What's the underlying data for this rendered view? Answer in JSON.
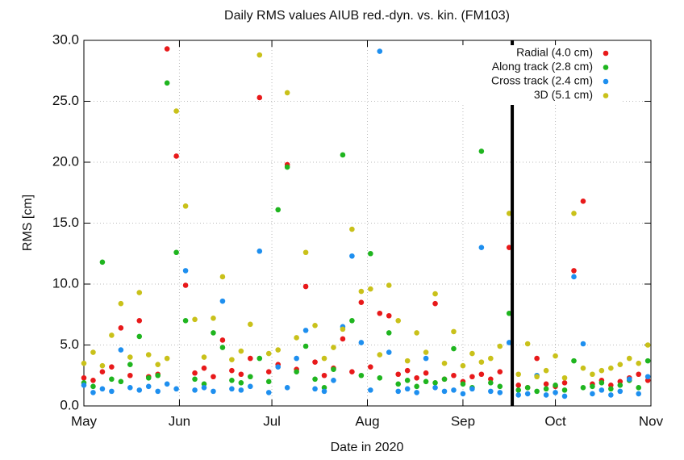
{
  "chart_data": {
    "type": "scatter",
    "title": "Daily RMS values AIUB red.-dyn. vs. kin. (FM103)",
    "x_label": "Date in 2020",
    "y_label": "RMS [cm]",
    "xlim": [
      0,
      184
    ],
    "xticks": [
      {
        "value": 0,
        "label": "May"
      },
      {
        "value": 31,
        "label": "Jun"
      },
      {
        "value": 61,
        "label": "Jul"
      },
      {
        "value": 92,
        "label": "Aug"
      },
      {
        "value": 123,
        "label": "Sep"
      },
      {
        "value": 153,
        "label": "Oct"
      },
      {
        "value": 184,
        "label": "Nov"
      }
    ],
    "ylim": [
      0,
      30
    ],
    "yticks": [
      {
        "value": 0,
        "label": "0.0"
      },
      {
        "value": 5,
        "label": "5.0"
      },
      {
        "value": 10,
        "label": "10.0"
      },
      {
        "value": 15,
        "label": "15.0"
      },
      {
        "value": 20,
        "label": "20.0"
      },
      {
        "value": 25,
        "label": "25.0"
      },
      {
        "value": 30,
        "label": "30.0"
      }
    ],
    "grid": true,
    "legend": "top-right",
    "vline_x": 139,
    "x": [
      0,
      3,
      6,
      9,
      12,
      15,
      18,
      21,
      24,
      27,
      30,
      33,
      36,
      39,
      42,
      45,
      48,
      51,
      54,
      57,
      60,
      63,
      66,
      69,
      72,
      75,
      78,
      81,
      84,
      87,
      90,
      93,
      96,
      99,
      102,
      105,
      108,
      111,
      114,
      117,
      120,
      123,
      126,
      129,
      132,
      135,
      138,
      141,
      144,
      147,
      150,
      153,
      156,
      159,
      162,
      165,
      168,
      171,
      174,
      177,
      180,
      183
    ],
    "series": [
      {
        "name": "Radial (4.0 cm)",
        "color": "#e8191a",
        "values": [
          2.3,
          2.1,
          2.8,
          3.2,
          6.4,
          2.5,
          7.0,
          2.4,
          2.6,
          29.3,
          20.5,
          9.9,
          2.7,
          3.1,
          2.4,
          5.4,
          2.9,
          2.6,
          3.9,
          25.3,
          2.8,
          3.4,
          19.8,
          3.0,
          9.8,
          3.6,
          2.5,
          3.1,
          5.5,
          2.8,
          8.5,
          3.2,
          7.6,
          7.4,
          2.6,
          2.9,
          2.3,
          2.7,
          8.4,
          2.2,
          2.5,
          2.0,
          2.4,
          2.6,
          2.2,
          2.8,
          13.0,
          1.7,
          1.5,
          3.9,
          1.8,
          1.6,
          1.9,
          11.1,
          16.8,
          1.8,
          2.1,
          1.7,
          2.0,
          2.3,
          2.6,
          2.1
        ]
      },
      {
        "name": "Along track (2.8 cm)",
        "color": "#1fb51f",
        "values": [
          1.9,
          1.6,
          11.8,
          2.2,
          2.0,
          3.4,
          5.7,
          2.3,
          2.5,
          26.5,
          12.6,
          7.0,
          2.2,
          1.8,
          6.0,
          4.8,
          2.1,
          1.9,
          2.4,
          3.9,
          2.0,
          16.1,
          19.6,
          2.8,
          4.9,
          2.2,
          1.5,
          3.0,
          20.6,
          7.0,
          2.5,
          12.5,
          2.3,
          6.0,
          1.8,
          2.1,
          1.6,
          2.0,
          1.9,
          2.2,
          4.7,
          1.8,
          1.5,
          20.9,
          1.9,
          1.6,
          7.6,
          1.3,
          1.5,
          1.2,
          1.4,
          1.7,
          1.3,
          3.7,
          1.5,
          1.6,
          1.9,
          1.4,
          1.7,
          2.1,
          1.5,
          3.7
        ]
      },
      {
        "name": "Cross track (2.4 cm)",
        "color": "#1e8fef",
        "values": [
          1.7,
          1.1,
          1.4,
          1.2,
          4.6,
          1.5,
          1.3,
          1.6,
          1.2,
          1.8,
          1.4,
          11.1,
          1.3,
          1.5,
          1.2,
          8.6,
          1.4,
          1.3,
          1.6,
          12.7,
          1.1,
          3.2,
          1.5,
          3.9,
          6.2,
          1.4,
          1.2,
          2.1,
          6.5,
          12.3,
          5.2,
          1.3,
          29.1,
          4.4,
          1.2,
          1.4,
          1.1,
          3.9,
          1.5,
          1.2,
          1.3,
          1.0,
          1.4,
          13.0,
          1.2,
          1.1,
          5.2,
          0.9,
          1.0,
          2.5,
          0.9,
          1.1,
          0.8,
          10.6,
          5.1,
          1.0,
          1.3,
          0.9,
          1.2,
          2.2,
          1.0,
          2.4
        ]
      },
      {
        "name": "3D (5.1 cm)",
        "color": "#c9c11a",
        "values": [
          3.5,
          4.4,
          3.3,
          5.8,
          8.4,
          4.0,
          9.3,
          4.2,
          3.4,
          3.9,
          24.2,
          16.4,
          7.1,
          4.0,
          7.2,
          10.6,
          3.8,
          4.5,
          6.7,
          28.8,
          4.3,
          4.6,
          25.7,
          5.6,
          12.6,
          6.6,
          3.9,
          4.8,
          6.3,
          14.5,
          9.4,
          9.6,
          4.2,
          9.9,
          7.0,
          3.7,
          6.0,
          4.4,
          9.2,
          3.5,
          6.1,
          3.3,
          4.3,
          3.6,
          3.9,
          4.9,
          15.8,
          2.6,
          5.1,
          2.4,
          2.9,
          4.1,
          2.3,
          15.8,
          3.1,
          2.6,
          2.9,
          3.1,
          3.4,
          3.9,
          3.5,
          5.0
        ]
      }
    ]
  }
}
